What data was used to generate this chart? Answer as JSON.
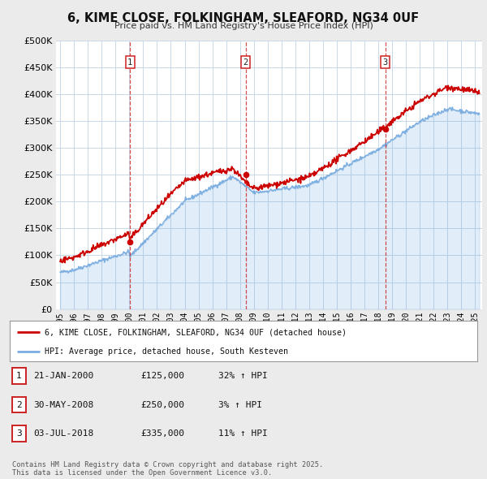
{
  "title": "6, KIME CLOSE, FOLKINGHAM, SLEAFORD, NG34 0UF",
  "subtitle": "Price paid vs. HM Land Registry's House Price Index (HPI)",
  "bg_color": "#ebebeb",
  "plot_bg_color": "#ffffff",
  "grid_color": "#c8d8e8",
  "red_line_color": "#cc0000",
  "blue_line_color": "#7aade0",
  "red_line_label": "6, KIME CLOSE, FOLKINGHAM, SLEAFORD, NG34 0UF (detached house)",
  "blue_line_label": "HPI: Average price, detached house, South Kesteven",
  "ylim": [
    0,
    500000
  ],
  "yticks": [
    0,
    50000,
    100000,
    150000,
    200000,
    250000,
    300000,
    350000,
    400000,
    450000,
    500000
  ],
  "ytick_labels": [
    "£0",
    "£50K",
    "£100K",
    "£150K",
    "£200K",
    "£250K",
    "£300K",
    "£350K",
    "£400K",
    "£450K",
    "£500K"
  ],
  "xlim_start": 1994.7,
  "xlim_end": 2025.5,
  "sale_dates": [
    2000.056,
    2008.414,
    2018.503
  ],
  "sale_prices": [
    125000,
    250000,
    335000
  ],
  "sale_labels": [
    "1",
    "2",
    "3"
  ],
  "vline_color": "#cc2222",
  "sale_dot_color": "#cc0000",
  "footer_text": "Contains HM Land Registry data © Crown copyright and database right 2025.\nThis data is licensed under the Open Government Licence v3.0.",
  "table_rows": [
    {
      "label": "1",
      "date": "21-JAN-2000",
      "price": "£125,000",
      "hpi": "32% ↑ HPI"
    },
    {
      "label": "2",
      "date": "30-MAY-2008",
      "price": "£250,000",
      "hpi": "3% ↑ HPI"
    },
    {
      "label": "3",
      "date": "03-JUL-2018",
      "price": "£335,000",
      "hpi": "11% ↑ HPI"
    }
  ]
}
